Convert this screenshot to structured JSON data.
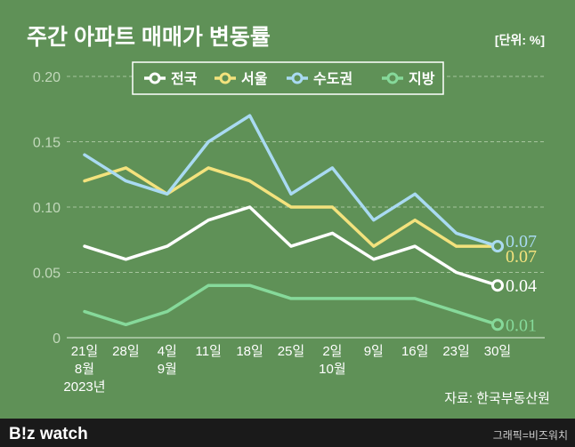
{
  "chart_data": {
    "type": "line",
    "title": "주간 아파트 매매가 변동률",
    "unit_label": "[단위: %]",
    "x_week_labels": [
      "21일",
      "28일",
      "4일",
      "11일",
      "18일",
      "25일",
      "2일",
      "9일",
      "16일",
      "23일",
      "30일"
    ],
    "x_month_labels": [
      "8월",
      "",
      "9월",
      "",
      "",
      "",
      "10월",
      "",
      "",
      "",
      ""
    ],
    "x_year_label": "2023년",
    "y_ticks": [
      "0.20",
      "0.15",
      "0.10",
      "0.05",
      "0"
    ],
    "ylim": [
      0,
      0.2
    ],
    "grid": true,
    "legend_position": "top",
    "series": [
      {
        "name": "전국",
        "color": "#ffffff",
        "values": [
          0.07,
          0.06,
          0.07,
          0.09,
          0.1,
          0.07,
          0.08,
          0.06,
          0.07,
          0.05,
          0.04
        ],
        "end_label": "0.04"
      },
      {
        "name": "서울",
        "color": "#f3e27d",
        "values": [
          0.12,
          0.13,
          0.11,
          0.13,
          0.12,
          0.1,
          0.1,
          0.07,
          0.09,
          0.07,
          0.07
        ],
        "end_label": "0.07"
      },
      {
        "name": "수도권",
        "color": "#a9daf2",
        "values": [
          0.14,
          0.12,
          0.11,
          0.15,
          0.17,
          0.11,
          0.13,
          0.09,
          0.11,
          0.08,
          0.07
        ],
        "end_label": "0.07"
      },
      {
        "name": "지방",
        "color": "#86d99a",
        "values": [
          0.02,
          0.01,
          0.02,
          0.04,
          0.04,
          0.03,
          0.03,
          0.03,
          0.03,
          0.02,
          0.01
        ],
        "end_label": "0.01"
      }
    ],
    "source": "자료: 한국부동산원"
  },
  "footer": {
    "logo": "B!z watch",
    "credit": "그래픽=비즈워치"
  }
}
